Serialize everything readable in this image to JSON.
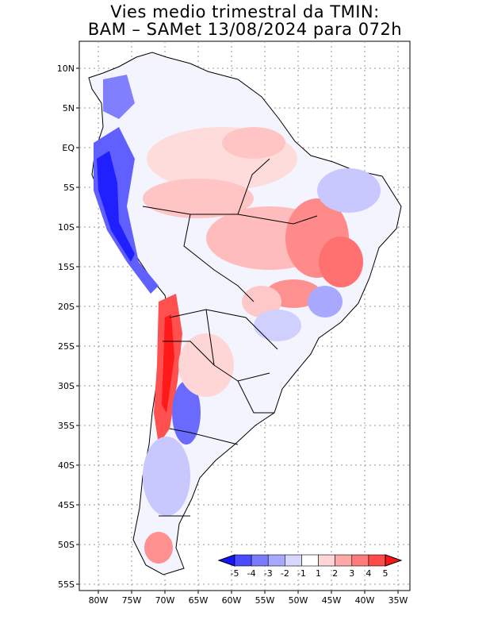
{
  "title_line1": "Vies medio trimestral da TMIN:",
  "title_line2": "BAM – SAMet 13/08/2024  para 072h",
  "y_ticks": [
    "10N",
    "5N",
    "EQ",
    "5S",
    "10S",
    "15S",
    "20S",
    "25S",
    "30S",
    "35S",
    "40S",
    "45S",
    "50S",
    "55S"
  ],
  "x_ticks": [
    "80W",
    "75W",
    "70W",
    "65W",
    "60W",
    "55W",
    "50W",
    "45W",
    "40W",
    "35W"
  ],
  "colorbar": {
    "labels": [
      "-5",
      "-4",
      "-3",
      "-2",
      "-1",
      "1",
      "2",
      "3",
      "4",
      "5"
    ],
    "colors": [
      "#1414ff",
      "#4a4aff",
      "#7a7aff",
      "#a8a8ff",
      "#d6d6ff",
      "#ffffff",
      "#ffd6d6",
      "#ffa8a8",
      "#ff7a7a",
      "#ff4a4a",
      "#ff1414"
    ]
  }
}
